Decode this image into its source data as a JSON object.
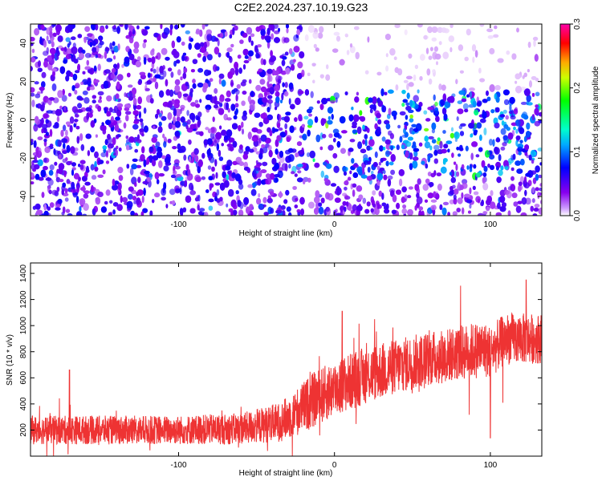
{
  "title": "C2E2.2024.237.10.19.G23",
  "chart_data": [
    {
      "type": "heatmap",
      "xlabel": "Height of straight line (km)",
      "ylabel": "Frequency (Hz)",
      "xlim": [
        -195,
        133
      ],
      "ylim": [
        -50,
        50
      ],
      "x_ticks": [
        -100,
        0,
        100
      ],
      "y_ticks": [
        -40,
        -20,
        0,
        20,
        40
      ],
      "x_tick_labels": [
        "-100",
        "0",
        "100"
      ],
      "y_tick_labels": [
        "-40",
        "-20",
        "0",
        "20",
        "40"
      ],
      "colorbar": {
        "label": "Normalized spectral amplitude",
        "range": [
          0,
          0.3
        ],
        "ticks": [
          0,
          0.1,
          0.2,
          0.3
        ],
        "tick_labels": [
          "0.0",
          "0.1",
          "0.2",
          "0.3"
        ],
        "colors": [
          "#ffffff",
          "#8800ee",
          "#0000ff",
          "#00aaff",
          "#00ffcc",
          "#00ff00",
          "#ffff00",
          "#ff6600",
          "#ff0000",
          "#ff00aa"
        ]
      },
      "description_regions": [
        {
          "x_range": [
            -195,
            -20
          ],
          "y_range": [
            -50,
            50
          ],
          "typical_amplitude": 0.05
        },
        {
          "x_range": [
            -20,
            133
          ],
          "y_range": [
            -30,
            15
          ],
          "typical_amplitude": 0.08
        },
        {
          "x_range": [
            -20,
            133
          ],
          "y_range": [
            15,
            50
          ],
          "typical_amplitude": 0.01
        }
      ],
      "grid": false
    },
    {
      "type": "line",
      "xlabel": "Height of straight line (km)",
      "ylabel": "SNR (10 * v/v)",
      "xlim": [
        -195,
        133
      ],
      "ylim": [
        0,
        1480
      ],
      "x_ticks": [
        -100,
        0,
        100
      ],
      "y_ticks": [
        200,
        400,
        600,
        800,
        1000,
        1200,
        1400
      ],
      "x_tick_labels": [
        "-100",
        "0",
        "100"
      ],
      "y_tick_labels": [
        "200",
        "400",
        "600",
        "800",
        "1000",
        "1200",
        "1400"
      ],
      "series": [
        {
          "color": "#ee3333",
          "trend_x": [
            -195,
            -150,
            -100,
            -60,
            -35,
            -25,
            -15,
            0,
            20,
            50,
            80,
            95,
            100,
            110,
            133
          ],
          "trend_mean": [
            200,
            200,
            200,
            210,
            260,
            330,
            420,
            520,
            620,
            720,
            790,
            820,
            800,
            900,
            900
          ],
          "noise_halfwidth": [
            110,
            110,
            110,
            120,
            150,
            180,
            210,
            220,
            220,
            210,
            210,
            220,
            200,
            200,
            190
          ],
          "peaks": [
            {
              "x": 100,
              "y": 1470
            },
            {
              "x": 123,
              "y": 1350
            },
            {
              "x": -170,
              "y": 660
            },
            {
              "x": 5,
              "y": 1110
            },
            {
              "x": 100,
              "y": 140
            }
          ]
        }
      ],
      "grid": false
    }
  ]
}
